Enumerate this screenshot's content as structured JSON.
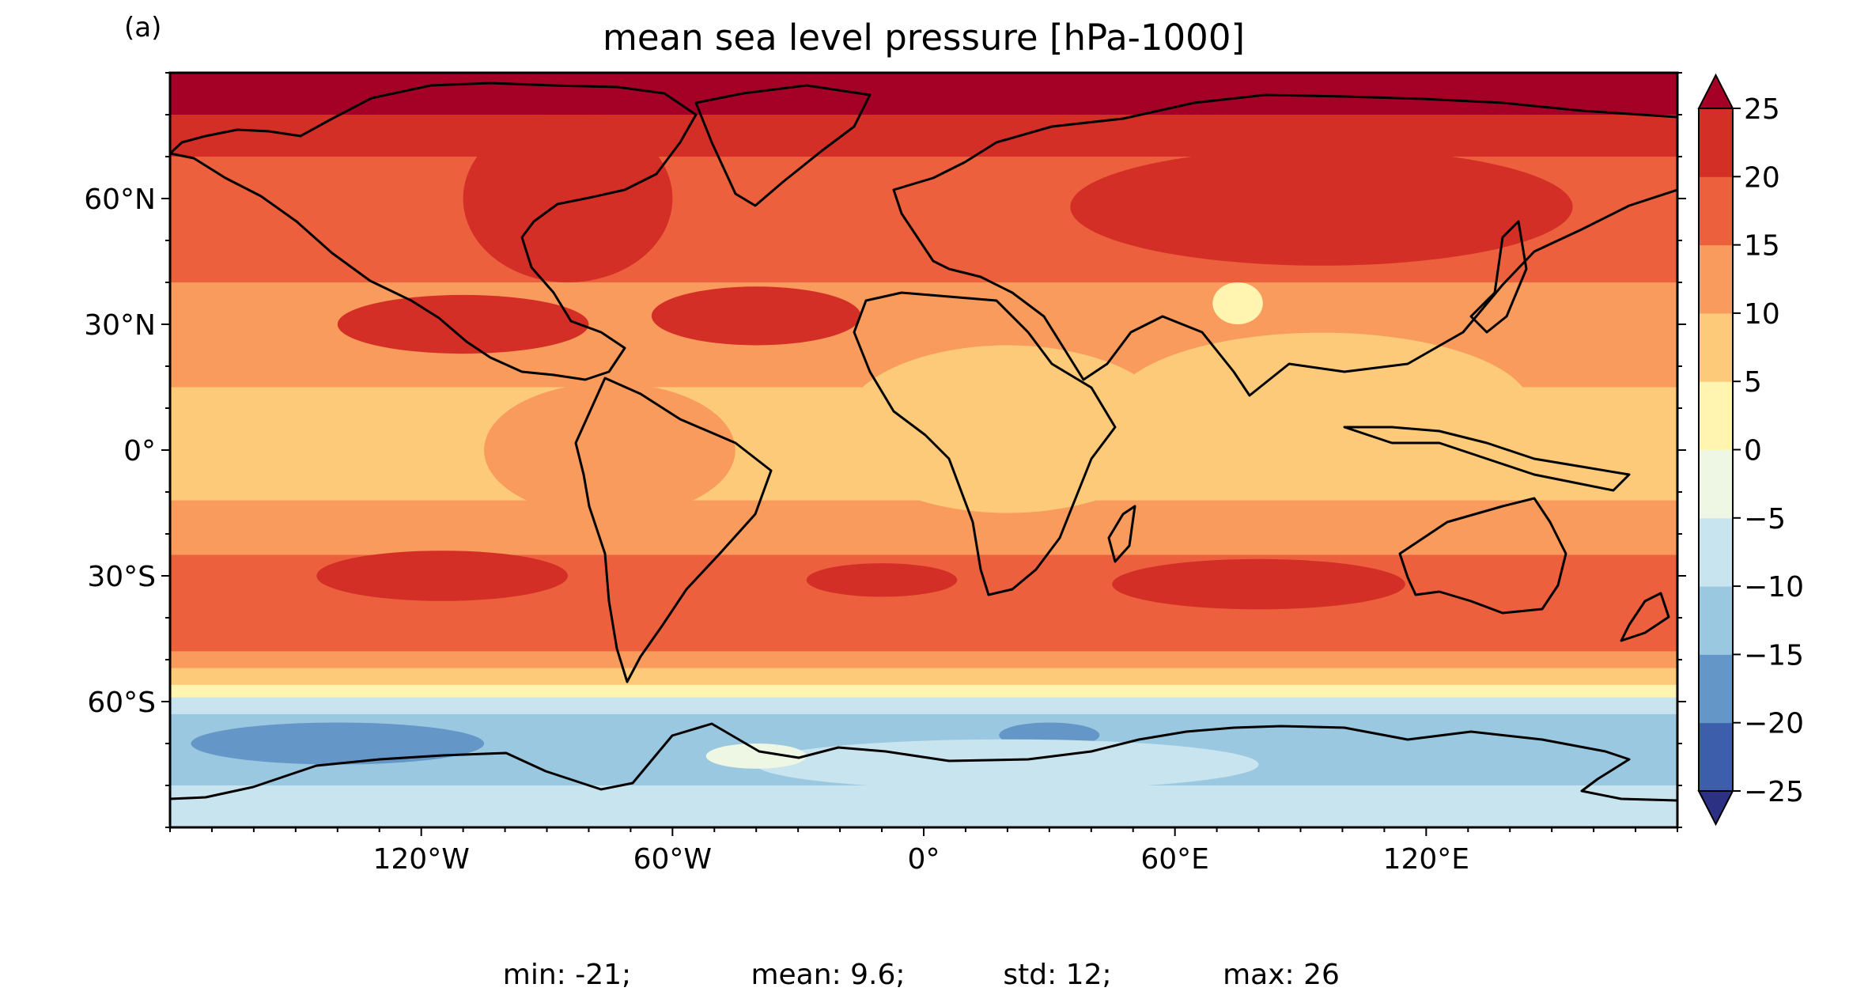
{
  "panel_label": "(a)",
  "title": "mean sea level pressure [hPa-1000]",
  "stats": {
    "min": "min: -21;",
    "mean": "mean: 9.6;",
    "std": "std: 12;",
    "max": "max: 26"
  },
  "chart_data": {
    "type": "heatmap",
    "title": "mean sea level pressure [hPa-1000]",
    "projection": "plate-carree",
    "extent": {
      "lon": [
        -180,
        180
      ],
      "lat": [
        -90,
        90
      ]
    },
    "x_ticks": [
      {
        "value": -120,
        "label": "120°W"
      },
      {
        "value": -60,
        "label": "60°W"
      },
      {
        "value": 0,
        "label": "0°"
      },
      {
        "value": 60,
        "label": "60°E"
      },
      {
        "value": 120,
        "label": "120°E"
      }
    ],
    "y_ticks": [
      {
        "value": 60,
        "label": "60°N"
      },
      {
        "value": 30,
        "label": "30°N"
      },
      {
        "value": 0,
        "label": "0°"
      },
      {
        "value": -30,
        "label": "30°S"
      },
      {
        "value": -60,
        "label": "60°S"
      }
    ],
    "colorbar": {
      "levels": [
        -25,
        -20,
        -15,
        -10,
        -5,
        0,
        5,
        10,
        15,
        20,
        25
      ],
      "tick_labels": [
        "−25",
        "−20",
        "−15",
        "−10",
        "−5",
        "0",
        "5",
        "10",
        "15",
        "20",
        "25"
      ],
      "colors": [
        "#3d5fab",
        "#6496c8",
        "#9ac8e0",
        "#c8e4ef",
        "#eef7e4",
        "#fff4b0",
        "#fdca7a",
        "#f99b5c",
        "#ec603e",
        "#d32f27"
      ],
      "under_color": "#2c3184",
      "over_color": "#a50026",
      "extend": "both"
    },
    "stats": {
      "min": -21,
      "mean": 9.6,
      "std": 12,
      "max": 26
    }
  }
}
